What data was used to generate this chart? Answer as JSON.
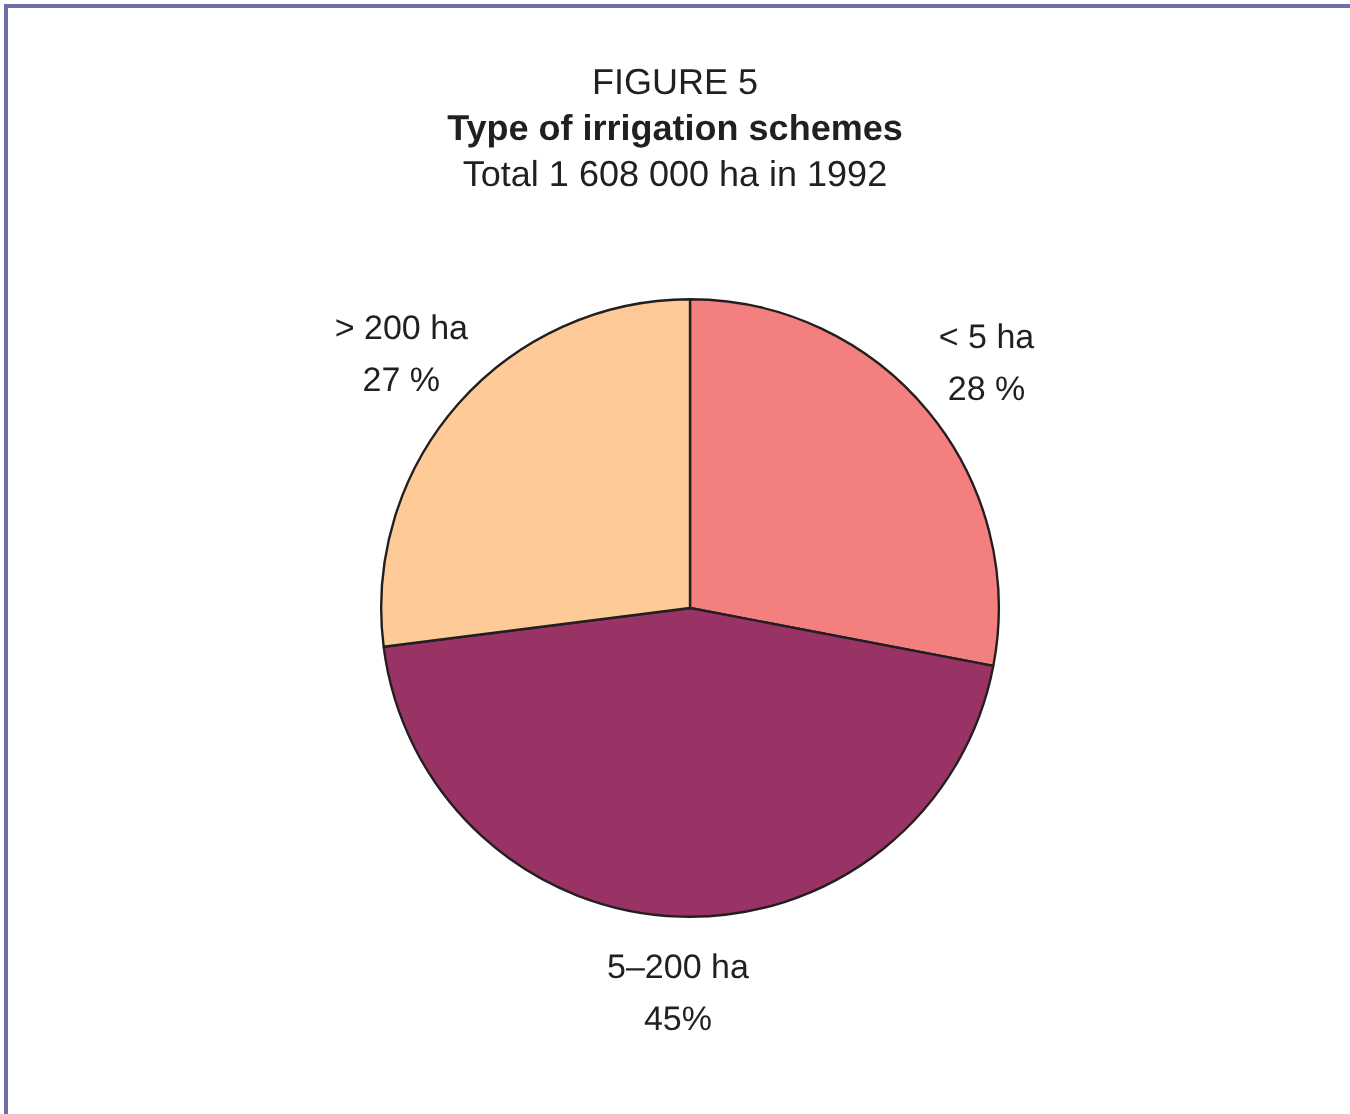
{
  "chart_data": {
    "type": "pie",
    "title": "Type of irrigation schemes",
    "subtitle": "Total 1 608 000 ha in 1992",
    "annotations": [
      "FIGURE 5"
    ],
    "categories": [
      "< 5 ha",
      "5–200 ha",
      "> 200 ha"
    ],
    "values": [
      28,
      45,
      27
    ],
    "value_labels": [
      "28 %",
      "45%",
      "27 %"
    ],
    "colors": [
      "#f47f7f",
      "#993366",
      "#fecb98"
    ]
  }
}
